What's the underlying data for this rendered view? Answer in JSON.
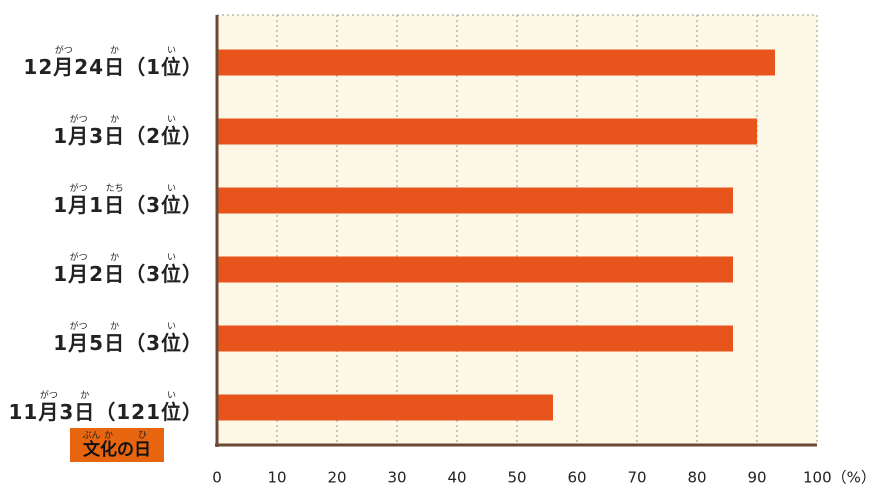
{
  "chart_data": {
    "type": "barh",
    "categories": [
      "12月24日（1位）",
      "1月3日（2位）",
      "1月1日（3位）",
      "1月2日（3位）",
      "1月5日（3位）",
      "11月3日（121位）"
    ],
    "furigana": [
      [
        "がつ",
        "か",
        "い"
      ],
      [
        "がつ",
        "か",
        "い"
      ],
      [
        "がつ",
        "たち",
        "い"
      ],
      [
        "がつ",
        "か",
        "い"
      ],
      [
        "がつ",
        "か",
        "い"
      ],
      [
        "がつ",
        "か",
        "い"
      ]
    ],
    "values": [
      93,
      90,
      86,
      86,
      86,
      56
    ],
    "color": "#e8551c",
    "xlim": [
      0,
      100
    ],
    "xticks": [
      0,
      10,
      20,
      30,
      40,
      50,
      60,
      70,
      80,
      90,
      {
        "value": 100,
        "label": "100（%）"
      }
    ],
    "grid": true,
    "badge": {
      "text": "文化の日",
      "furigana": [
        "ぶん",
        "か",
        "ひ"
      ]
    }
  }
}
